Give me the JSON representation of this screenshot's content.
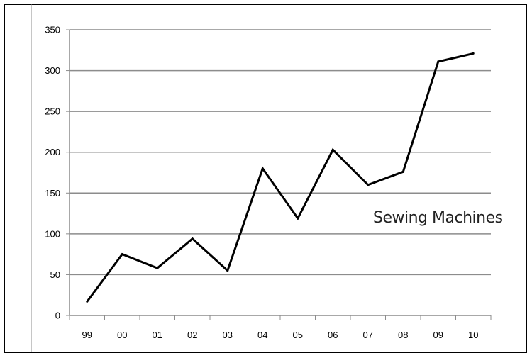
{
  "chart_data": {
    "type": "line",
    "title": "",
    "xlabel": "",
    "ylabel": "",
    "categories": [
      "99",
      "00",
      "01",
      "02",
      "03",
      "04",
      "05",
      "06",
      "07",
      "08",
      "09",
      "10"
    ],
    "series": [
      {
        "name": "Sewing Machines",
        "values": [
          17,
          75,
          58,
          94,
          55,
          180,
          119,
          203,
          160,
          176,
          311,
          321
        ]
      }
    ],
    "ylim": [
      0,
      350
    ],
    "yticks": [
      "0",
      "50",
      "100",
      "150",
      "200",
      "250",
      "300",
      "350"
    ],
    "grid": true,
    "legend": "series name drawn inline right of the line",
    "colors": {
      "line": "#000000",
      "grid": "#8c8c8c",
      "frame": "#000000"
    }
  }
}
